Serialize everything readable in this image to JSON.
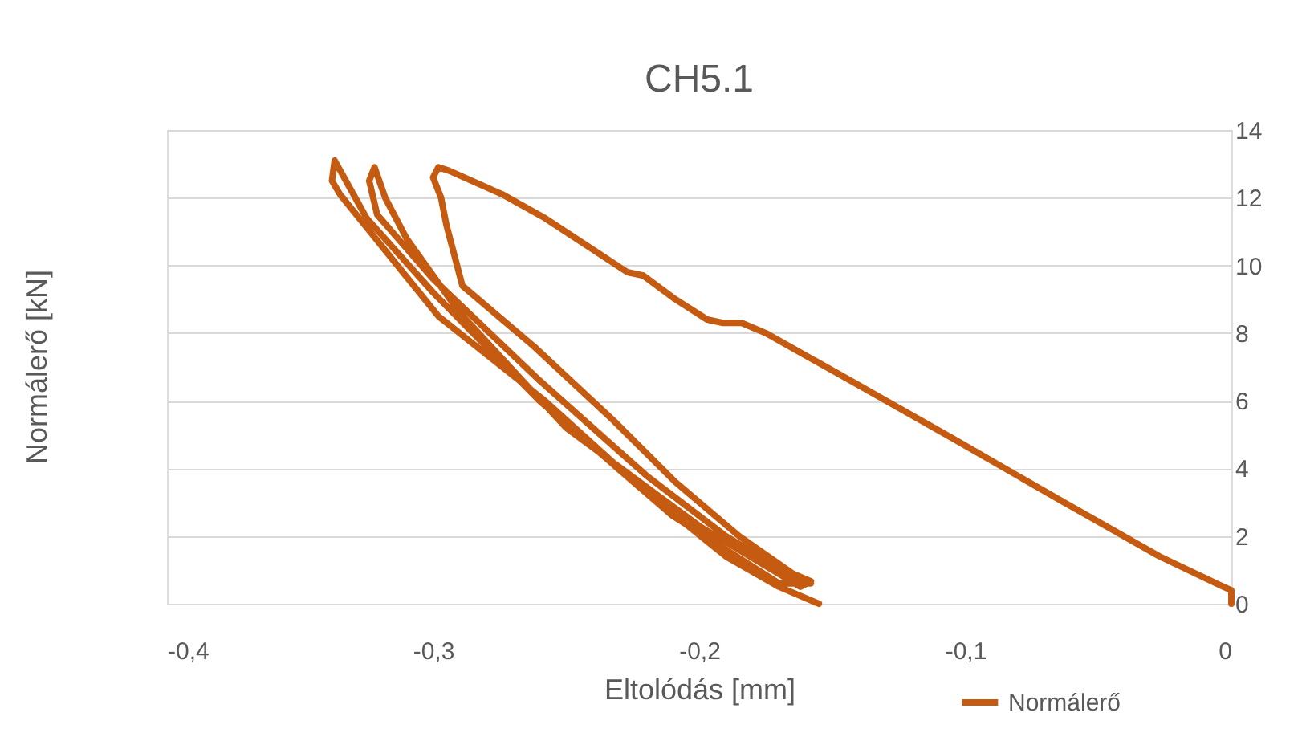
{
  "chart_data": {
    "type": "line",
    "title": "CH5.1",
    "xlabel": "Eltolódás  [mm]",
    "ylabel": "Normálerő [kN]",
    "xlim": [
      -0.4,
      0
    ],
    "ylim": [
      0,
      14
    ],
    "xticks": [
      {
        "value": -0.4,
        "label": "-0,4"
      },
      {
        "value": -0.3,
        "label": "-0,3"
      },
      {
        "value": -0.2,
        "label": "-0,2"
      },
      {
        "value": -0.1,
        "label": "-0,1"
      },
      0
    ],
    "yticks": [
      0,
      2,
      4,
      6,
      8,
      10,
      12,
      14
    ],
    "grid": "y",
    "legend": "bottom right",
    "marker": "none",
    "line_style": "solid",
    "series": [
      {
        "name": "Normálerő",
        "color": "#c55a11",
        "x": [
          0,
          0,
          -0.003,
          -0.027,
          -0.063,
          -0.105,
          -0.141,
          -0.175,
          -0.184,
          -0.191,
          -0.197,
          -0.209,
          -0.221,
          -0.227,
          -0.258,
          -0.274,
          -0.294,
          -0.298,
          -0.3,
          -0.297,
          -0.295,
          -0.289,
          -0.262,
          -0.232,
          -0.209,
          -0.185,
          -0.165,
          -0.158,
          -0.162,
          -0.2,
          -0.25,
          -0.29,
          -0.31,
          -0.318,
          -0.322,
          -0.324,
          -0.321,
          -0.3,
          -0.26,
          -0.22,
          -0.19,
          -0.165,
          -0.158,
          -0.17,
          -0.21,
          -0.26,
          -0.3,
          -0.325,
          -0.337,
          -0.338,
          -0.335,
          -0.298,
          -0.258,
          -0.22,
          -0.19,
          -0.17,
          -0.155
        ],
        "values": [
          0,
          0.4,
          0.5,
          1.4,
          3.0,
          4.9,
          6.5,
          8.0,
          8.3,
          8.3,
          8.4,
          9.0,
          9.7,
          9.8,
          11.4,
          12.1,
          12.8,
          12.9,
          12.6,
          12.0,
          11.2,
          9.4,
          7.6,
          5.4,
          3.6,
          2.0,
          0.9,
          0.66,
          0.5,
          2.3,
          5.2,
          8.6,
          10.8,
          12.0,
          12.9,
          12.5,
          11.5,
          9.6,
          6.6,
          3.8,
          2.0,
          0.8,
          0.6,
          0.6,
          2.6,
          6.0,
          9.2,
          11.4,
          13.1,
          12.5,
          12.1,
          8.5,
          6.0,
          3.3,
          1.4,
          0.5,
          0
        ]
      }
    ]
  }
}
